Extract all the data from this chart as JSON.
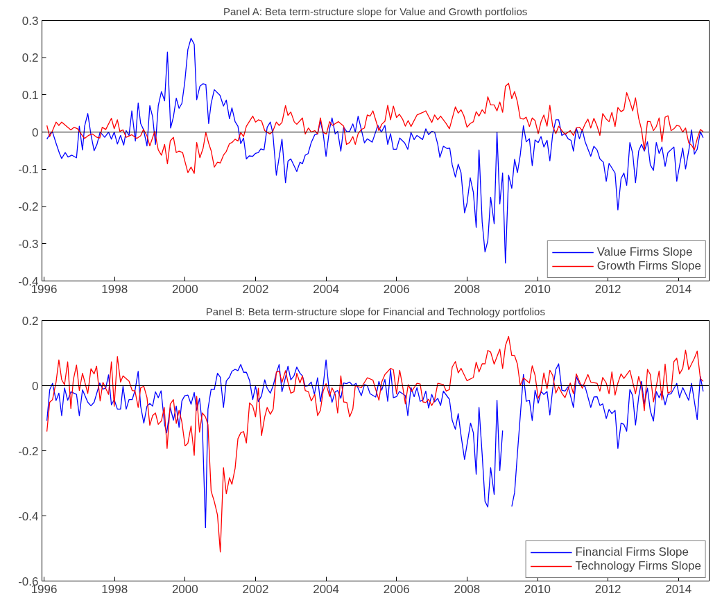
{
  "chart_data": [
    {
      "type": "line",
      "title": "Panel A: Beta term-structure slope for Value and Growth portfolios",
      "xlim": [
        1995.94,
        2014.87
      ],
      "xticks": [
        1996,
        1998,
        2000,
        2002,
        2004,
        2006,
        2008,
        2010,
        2012,
        2014
      ],
      "ylim": [
        -0.4,
        0.3
      ],
      "yticks": [
        -0.4,
        -0.3,
        -0.2,
        -0.1,
        0,
        0.1,
        0.2,
        0.3
      ],
      "grid": false,
      "legend": "bottom right",
      "ref_lines": [
        {
          "axis": "y",
          "value": 0,
          "color": "#000000"
        }
      ],
      "series": [
        {
          "name": "Value Firms Slope",
          "color": "#0000ff",
          "x": [
            1996.08,
            1996.18,
            1996.24,
            1996.34,
            1996.44,
            1996.5,
            1996.6,
            1996.68,
            1996.79,
            1996.92,
            1997.0,
            1997.09,
            1997.15,
            1997.24,
            1997.33,
            1997.42,
            1997.5,
            1997.59,
            1997.72,
            1997.83,
            1997.91,
            1997.99,
            1998.08,
            1998.17,
            1998.26,
            1998.33,
            1998.41,
            1998.49,
            1998.59,
            1998.67,
            1998.74,
            1998.82,
            1998.92,
            1999.0,
            1999.08,
            1999.16,
            1999.24,
            1999.33,
            1999.42,
            1999.5,
            1999.59,
            1999.67,
            1999.75,
            1999.83,
            1999.91,
            1999.99,
            2000.08,
            2000.17,
            2000.26,
            2000.33,
            2000.42,
            2000.51,
            2000.59,
            2000.67,
            2000.74,
            2000.83,
            2000.99,
            2001.09,
            2001.17,
            2001.26,
            2001.33,
            2001.42,
            2001.5,
            2001.58,
            2001.66,
            2001.74,
            2001.82,
            2001.92,
            2002.0,
            2002.08,
            2002.15,
            2002.24,
            2002.33,
            2002.42,
            2002.49,
            2002.59,
            2002.75,
            2002.85,
            2002.92,
            2003.0,
            2003.17,
            2003.26,
            2003.33,
            2003.41,
            2003.49,
            2003.58,
            2003.68,
            2003.76,
            2003.84,
            2003.92,
            2004.0,
            2004.1,
            2004.17,
            2004.26,
            2004.33,
            2004.42,
            2004.5,
            2004.59,
            2004.67,
            2004.76,
            2004.83,
            2004.91,
            2005.0,
            2005.09,
            2005.17,
            2005.31,
            2005.47,
            2005.57,
            2005.67,
            2005.75,
            2005.83,
            2005.91,
            2006.0,
            2006.09,
            2006.23,
            2006.32,
            2006.41,
            2006.5,
            2006.58,
            2006.74,
            2006.83,
            2006.91,
            2007.0,
            2007.08,
            2007.17,
            2007.23,
            2007.33,
            2007.43,
            2007.51,
            2007.58,
            2007.67,
            2007.75,
            2007.83,
            2007.93,
            2008.0,
            2008.09,
            2008.18,
            2008.26,
            2008.34,
            2008.43,
            2008.51,
            2008.59,
            2008.67,
            2008.77,
            2008.85,
            2008.93,
            2009.01,
            2009.09,
            2009.18,
            2009.27,
            2009.35,
            2009.43,
            2009.51,
            2009.6,
            2009.68,
            2009.77,
            2009.85,
            2009.93,
            2010.02,
            2010.1,
            2010.18,
            2010.27,
            2010.35,
            2010.43,
            2010.52,
            2010.6,
            2010.69,
            2010.78,
            2010.87,
            2010.95,
            2011.02,
            2011.1,
            2011.19,
            2011.27,
            2011.35,
            2011.51,
            2011.6,
            2011.69,
            2011.77,
            2011.87,
            2011.95,
            2012.03,
            2012.2,
            2012.28,
            2012.37,
            2012.45,
            2012.53,
            2012.62,
            2012.7,
            2012.78,
            2012.87,
            2012.95,
            2013.03,
            2013.12,
            2013.2,
            2013.29,
            2013.37,
            2013.45,
            2013.53,
            2013.62,
            2013.7,
            2013.87,
            2013.95,
            2014.12,
            2014.2,
            2014.3,
            2014.37,
            2014.45,
            2014.53,
            2014.62,
            2014.7
          ],
          "values": [
            -0.019,
            -0.003,
            0,
            -0.03,
            -0.058,
            -0.071,
            -0.055,
            -0.067,
            -0.062,
            -0.069,
            0.016,
            -0.048,
            0.016,
            0.05,
            -0.007,
            -0.05,
            -0.033,
            0,
            -0.014,
            0,
            -0.019,
            0,
            -0.032,
            -0.009,
            -0.035,
            0.004,
            -0.009,
            0.057,
            -0.024,
            0.078,
            0.023,
            0.007,
            -0.037,
            0.071,
            0.041,
            -0.033,
            0.071,
            0.109,
            0.084,
            0.215,
            0.011,
            0.041,
            0.091,
            0.064,
            0.077,
            0.133,
            0.222,
            0.252,
            0.236,
            0.087,
            0.123,
            0.13,
            0.128,
            0.023,
            0.077,
            0.114,
            0.099,
            0.07,
            0.086,
            0.036,
            0.065,
            0.028,
            0.016,
            -0.031,
            -0.016,
            -0.072,
            -0.064,
            -0.065,
            -0.057,
            -0.055,
            -0.045,
            -0.048,
            0.013,
            0.027,
            -0.003,
            -0.116,
            -0.019,
            -0.136,
            -0.078,
            -0.072,
            -0.106,
            -0.081,
            -0.085,
            -0.062,
            -0.058,
            -0.028,
            -0.007,
            -0.005,
            0.03,
            -0.005,
            -0.065,
            0.009,
            0.038,
            -0.005,
            0.002,
            -0.051,
            0.013,
            0.001,
            0.002,
            0.022,
            0,
            0.043,
            0.007,
            -0.029,
            -0.018,
            -0.027,
            0.018,
            0,
            0.018,
            -0.033,
            -0.004,
            -0.046,
            -0.046,
            -0.016,
            -0.029,
            -0.046,
            -0.001,
            -0.02,
            -0.009,
            -0.02,
            0.009,
            -0.007,
            0.002,
            0,
            -0.033,
            -0.068,
            -0.038,
            -0.044,
            -0.043,
            -0.088,
            -0.121,
            -0.086,
            -0.109,
            -0.217,
            -0.191,
            -0.123,
            -0.162,
            -0.256,
            -0.048,
            -0.242,
            -0.322,
            -0.292,
            -0.175,
            -0.246,
            0,
            -0.193,
            -0.11,
            -0.352,
            -0.116,
            -0.151,
            -0.073,
            -0.109,
            -0.062,
            0.017,
            -0.026,
            -0.018,
            -0.09,
            -0.021,
            -0.028,
            -0.012,
            -0.04,
            -0.022,
            -0.077,
            -0.006,
            0.033,
            0.033,
            -0.009,
            -0.004,
            -0.018,
            -0.022,
            -0.051,
            0.011,
            -0.018,
            0.007,
            -0.026,
            -0.065,
            -0.038,
            -0.048,
            -0.072,
            -0.081,
            -0.132,
            -0.084,
            -0.11,
            -0.209,
            -0.125,
            -0.11,
            -0.143,
            -0.028,
            -0.057,
            -0.136,
            -0.051,
            -0.033,
            -0.051,
            -0.026,
            -0.088,
            -0.103,
            -0.028,
            -0.057,
            -0.04,
            -0.092,
            -0.055,
            -0.04,
            -0.132,
            -0.043,
            -0.099,
            -0.044,
            0.006,
            -0.059,
            -0.046,
            0.001,
            -0.015
          ]
        },
        {
          "name": "Growth Firms Slope",
          "color": "#ff0000",
          "x": [
            1996.08,
            1996.16,
            1996.24,
            1996.34,
            1996.42,
            1996.5,
            1996.76,
            1996.85,
            1996.95,
            1997.08,
            1997.15,
            1997.26,
            1997.37,
            1997.5,
            1997.58,
            1997.65,
            1997.75,
            1997.91,
            1997.99,
            1998.08,
            1998.15,
            1998.24,
            1998.33,
            1998.49,
            1998.63,
            1998.74,
            1998.82,
            1998.92,
            1999.0,
            1999.14,
            1999.24,
            1999.33,
            1999.42,
            1999.5,
            1999.58,
            1999.67,
            1999.75,
            1999.83,
            1999.93,
            2000.08,
            2000.17,
            2000.26,
            2000.33,
            2000.42,
            2000.51,
            2000.59,
            2000.67,
            2000.74,
            2000.83,
            2000.92,
            2001.0,
            2001.09,
            2001.17,
            2001.26,
            2001.33,
            2001.42,
            2001.5,
            2001.58,
            2001.66,
            2001.74,
            2001.92,
            2002.0,
            2002.08,
            2002.17,
            2002.26,
            2002.41,
            2002.49,
            2002.59,
            2002.67,
            2002.75,
            2002.85,
            2002.92,
            2003.0,
            2003.1,
            2003.17,
            2003.33,
            2003.41,
            2003.5,
            2003.58,
            2003.68,
            2003.76,
            2003.84,
            2003.92,
            2004.01,
            2004.1,
            2004.18,
            2004.35,
            2004.5,
            2004.58,
            2004.67,
            2004.76,
            2004.83,
            2004.91,
            2005.0,
            2005.09,
            2005.17,
            2005.25,
            2005.33,
            2005.5,
            2005.58,
            2005.67,
            2005.75,
            2005.83,
            2005.91,
            2006.0,
            2006.08,
            2006.17,
            2006.25,
            2006.33,
            2006.41,
            2006.58,
            2006.75,
            2006.83,
            2007.0,
            2007.08,
            2007.17,
            2007.25,
            2007.41,
            2007.5,
            2007.67,
            2007.75,
            2007.83,
            2007.91,
            2008.0,
            2008.09,
            2008.18,
            2008.26,
            2008.34,
            2008.43,
            2008.51,
            2008.59,
            2008.67,
            2008.77,
            2008.85,
            2008.93,
            2009.01,
            2009.09,
            2009.18,
            2009.27,
            2009.35,
            2009.43,
            2009.51,
            2009.6,
            2009.68,
            2009.77,
            2009.85,
            2009.93,
            2010.02,
            2010.1,
            2010.18,
            2010.27,
            2010.35,
            2010.43,
            2010.52,
            2010.6,
            2010.69,
            2010.78,
            2010.93,
            2011.02,
            2011.1,
            2011.19,
            2011.27,
            2011.35,
            2011.43,
            2011.51,
            2011.6,
            2011.69,
            2011.77,
            2011.85,
            2011.95,
            2012.03,
            2012.11,
            2012.2,
            2012.28,
            2012.37,
            2012.45,
            2012.53,
            2012.62,
            2012.7,
            2012.78,
            2012.87,
            2012.95,
            2013.03,
            2013.12,
            2013.2,
            2013.29,
            2013.37,
            2013.45,
            2013.53,
            2013.62,
            2013.7,
            2013.79,
            2013.87,
            2013.95,
            2014.03,
            2014.12,
            2014.2,
            2014.29,
            2014.37,
            2014.45,
            2014.53,
            2014.62,
            2014.7
          ],
          "values": [
            0.018,
            -0.012,
            0.004,
            0.027,
            0.018,
            0.027,
            0.006,
            0.013,
            0.009,
            -0.009,
            -0.017,
            -0.009,
            -0.005,
            -0.014,
            -0.016,
            0.013,
            0.007,
            0.037,
            0.009,
            0.033,
            0.002,
            0.006,
            -0.014,
            -0.007,
            -0.017,
            -0.01,
            0.007,
            -0.01,
            -0.037,
            0.002,
            -0.048,
            -0.062,
            -0.033,
            -0.085,
            -0.024,
            -0.014,
            -0.055,
            -0.051,
            -0.055,
            -0.109,
            -0.094,
            -0.111,
            -0.028,
            -0.069,
            -0.044,
            -0.001,
            -0.03,
            -0.05,
            -0.094,
            -0.081,
            -0.083,
            -0.062,
            -0.052,
            -0.031,
            -0.028,
            -0.019,
            -0.024,
            -0.001,
            -0.012,
            0.016,
            0.043,
            0.027,
            0.033,
            0.03,
            0.004,
            -0.005,
            0.002,
            0.027,
            0.018,
            0.026,
            0.071,
            0.045,
            0.054,
            0.027,
            0.021,
            0.038,
            -0.005,
            0.011,
            0,
            0.004,
            -0.005,
            0.038,
            -0.001,
            -0.005,
            0.028,
            0.018,
            0.028,
            0.016,
            -0.033,
            -0.028,
            -0.012,
            -0.033,
            -0.004,
            0.007,
            0.011,
            0.046,
            0.043,
            0.057,
            0.004,
            0.021,
            0.029,
            0.072,
            0.033,
            0.07,
            0.039,
            0.048,
            0.035,
            0.016,
            0.031,
            0.015,
            0.046,
            0.053,
            0.057,
            0.026,
            0.046,
            0.033,
            0.043,
            0.023,
            0.009,
            0.068,
            0.051,
            0.06,
            0.044,
            0.013,
            0.023,
            0.028,
            0.055,
            0.043,
            0.06,
            0.05,
            0.095,
            0.073,
            0.073,
            0.057,
            0.081,
            0.053,
            0.123,
            0.131,
            0.09,
            0.109,
            0.081,
            0.037,
            0.035,
            0.04,
            0.015,
            0.038,
            0.031,
            -0.004,
            0.028,
            0.046,
            0.016,
            0.072,
            0.016,
            -0.004,
            0.016,
            0.004,
            -0.006,
            0.004,
            -0.009,
            0.011,
            0.013,
            0.004,
            0.022,
            0.035,
            0.011,
            0.037,
            0.016,
            -0.009,
            0.05,
            0.035,
            0.028,
            0.053,
            0.015,
            0.066,
            0.055,
            0.06,
            0.106,
            0.082,
            0.057,
            0.092,
            0.037,
            0.007,
            -0.048,
            0.029,
            0.028,
            0.004,
            0.015,
            0.038,
            -0.026,
            0.04,
            0.044,
            0.004,
            0.009,
            0.018,
            0.016,
            0,
            0.011,
            -0.029,
            -0.035,
            -0.048,
            -0.018,
            0.007,
            0.001
          ]
        }
      ]
    },
    {
      "type": "line",
      "title": "Panel B: Beta term-structure slope for Financial and Technology portfolios",
      "xlim": [
        1995.94,
        2014.87
      ],
      "xticks": [
        1996,
        1998,
        2000,
        2002,
        2004,
        2006,
        2008,
        2010,
        2012,
        2014
      ],
      "ylim": [
        -0.6,
        0.2
      ],
      "yticks": [
        -0.6,
        -0.4,
        -0.2,
        0,
        0.2
      ],
      "grid": false,
      "legend": "bottom right",
      "ref_lines": [
        {
          "axis": "y",
          "value": 0,
          "color": "#000000"
        }
      ],
      "series": [
        {
          "name": "Financial Firms Slope",
          "color": "#0000ff",
          "x": [
            1996.08,
            1996.16,
            1996.24,
            1996.34,
            1996.42,
            1996.5,
            1996.58,
            1996.67,
            1996.76,
            1996.92,
            1997.0,
            1997.09,
            1997.24,
            1997.33,
            1997.42,
            1997.58,
            1997.67,
            1997.75,
            1997.83,
            1997.91,
            1997.99,
            1998.08,
            1998.17,
            1998.24,
            1998.33,
            1998.41,
            1998.5,
            1998.58,
            1998.67,
            1998.74,
            1998.83,
            1998.92,
            1999.0,
            1999.08,
            1999.16,
            1999.24,
            1999.32,
            1999.42,
            1999.48,
            1999.58,
            1999.67,
            1999.75,
            1999.83,
            1999.91,
            1999.99,
            2000.08,
            2000.17,
            2000.26,
            2000.33,
            2000.41,
            2000.49,
            2000.58,
            2000.65,
            2000.74,
            2000.83,
            2000.92,
            2001.0,
            2001.09,
            2001.17,
            2001.26,
            2001.33,
            2001.42,
            2001.5,
            2001.58,
            2001.66,
            2001.74,
            2001.83,
            2001.92,
            2002.0,
            2002.08,
            2002.17,
            2002.26,
            2002.33,
            2002.42,
            2002.5,
            2002.59,
            2002.67,
            2002.75,
            2002.85,
            2002.92,
            2003.0,
            2003.09,
            2003.17,
            2003.26,
            2003.33,
            2003.41,
            2003.49,
            2003.58,
            2003.67,
            2003.76,
            2003.84,
            2003.92,
            2004.0,
            2004.08,
            2004.17,
            2004.26,
            2004.33,
            2004.42,
            2004.5,
            2004.58,
            2004.67,
            2004.76,
            2004.85,
            2005.0,
            2005.09,
            2005.17,
            2005.25,
            2005.41,
            2005.5,
            2005.58,
            2005.67,
            2005.75,
            2005.83,
            2005.91,
            2006.0,
            2006.08,
            2006.25,
            2006.32,
            2006.41,
            2006.5,
            2006.58,
            2006.67,
            2006.75,
            2006.83,
            2006.91,
            2007.0,
            2007.08,
            2007.17,
            2007.25,
            2007.33,
            2007.5,
            2007.58,
            2007.67,
            2007.75,
            2007.83,
            2007.93,
            2008.01,
            2008.1,
            2008.18,
            2008.26,
            2008.34,
            2008.43,
            2008.51,
            2008.59,
            2008.67,
            2008.77,
            2008.85,
            2008.93,
            2009.01,
            2009.09,
            2009.18,
            2009.27,
            2009.35,
            2009.43,
            2009.51,
            2009.6,
            2009.68,
            2009.77,
            2009.85,
            2009.93,
            2010.02,
            2010.1,
            2010.18,
            2010.27,
            2010.35,
            2010.43,
            2010.52,
            2010.6,
            2010.69,
            2010.78,
            2010.87,
            2011.02,
            2011.1,
            2011.19,
            2011.35,
            2011.51,
            2011.6,
            2011.69,
            2011.77,
            2011.85,
            2011.95,
            2012.03,
            2012.11,
            2012.2,
            2012.28,
            2012.37,
            2012.45,
            2012.53,
            2012.62,
            2012.7,
            2012.78,
            2012.87,
            2012.95,
            2013.03,
            2013.12,
            2013.2,
            2013.29,
            2013.37,
            2013.45,
            2013.53,
            2013.62,
            2013.7,
            2013.79,
            2013.95,
            2014.03,
            2014.12,
            2014.29,
            2014.37,
            2014.53,
            2014.62,
            2014.7
          ],
          "values": [
            -0.108,
            -0.013,
            0.007,
            -0.046,
            -0.023,
            -0.092,
            -0.007,
            -0.045,
            -0.019,
            -0.027,
            -0.092,
            -0.013,
            -0.051,
            -0.062,
            -0.051,
            0.008,
            -0.011,
            -0.007,
            0.033,
            -0.059,
            -0.043,
            -0.072,
            -0.072,
            -0.002,
            -0.072,
            -0.043,
            -0.043,
            -0.015,
            0.044,
            -0.063,
            -0.115,
            -0.063,
            -0.055,
            -0.063,
            -0.019,
            -0.037,
            -0.016,
            -0.12,
            -0.145,
            -0.067,
            -0.106,
            -0.063,
            -0.128,
            -0.047,
            -0.031,
            -0.029,
            -0.057,
            -0.021,
            -0.076,
            -0.039,
            -0.12,
            -0.436,
            -0.072,
            -0.011,
            -0.012,
            0.038,
            0.026,
            -0.067,
            0.014,
            0.026,
            0.044,
            0.05,
            0.046,
            0.065,
            0.041,
            0.041,
            0.016,
            -0.043,
            -0.002,
            -0.049,
            -0.031,
            0.018,
            -0.008,
            -0.023,
            0,
            0.038,
            0.065,
            -0.019,
            0.026,
            0.06,
            0.018,
            0.03,
            0.057,
            0.038,
            0.03,
            -0.002,
            0,
            0.011,
            -0.027,
            0.024,
            -0.049,
            0.002,
            0.079,
            -0.007,
            -0.051,
            -0.019,
            -0.015,
            -0.039,
            0.008,
            0.006,
            0.011,
            0,
            0.007,
            -0.031,
            0.003,
            0,
            -0.025,
            -0.035,
            0.013,
            -0.014,
            0.019,
            -0.048,
            0.049,
            -0.037,
            -0.034,
            -0.018,
            -0.031,
            -0.092,
            -0.006,
            -0.034,
            -0.006,
            -0.048,
            -0.044,
            -0.017,
            -0.069,
            -0.027,
            -0.05,
            -0.039,
            -0.061,
            -0.017,
            -0.042,
            -0.107,
            -0.134,
            -0.086,
            -0.153,
            -0.227,
            -0.174,
            -0.115,
            -0.145,
            -0.272,
            -0.067,
            -0.212,
            -0.355,
            -0.373,
            -0.252,
            -0.334,
            -0.045,
            -0.261,
            -0.138,
            null,
            null,
            -0.371,
            -0.328,
            -0.208,
            -0.094,
            0.034,
            -0.048,
            -0.045,
            -0.107,
            -0.014,
            -0.054,
            -0.018,
            -0.027,
            -0.018,
            -0.09,
            -0.01,
            0.05,
            0.067,
            -0.014,
            -0.017,
            -0.003,
            -0.067,
            0.028,
            0.005,
            -0.003,
            -0.067,
            -0.035,
            -0.034,
            -0.061,
            -0.056,
            -0.101,
            -0.073,
            -0.086,
            -0.076,
            -0.193,
            -0.115,
            -0.119,
            -0.14,
            -0.012,
            -0.031,
            -0.121,
            -0.035,
            0.013,
            -0.056,
            -0.008,
            -0.077,
            -0.109,
            -0.018,
            -0.037,
            -0.018,
            -0.059,
            -0.027,
            -0.025,
            0.007,
            -0.037,
            -0.006,
            -0.045,
            0.007,
            -0.104,
            0.028,
            -0.018
          ]
        },
        {
          "name": "Technology Firms Slope",
          "color": "#ff0000",
          "x": [
            1996.08,
            1996.16,
            1996.24,
            1996.34,
            1996.42,
            1996.5,
            1996.58,
            1996.67,
            1996.76,
            1996.83,
            1996.92,
            1997.0,
            1997.09,
            1997.24,
            1997.33,
            1997.42,
            1997.49,
            1997.59,
            1997.67,
            1997.83,
            1997.91,
            1997.99,
            1998.08,
            1998.17,
            1998.24,
            1998.41,
            1998.5,
            1998.58,
            1998.67,
            1998.74,
            1998.83,
            1998.92,
            1999.0,
            1999.08,
            1999.16,
            1999.24,
            1999.33,
            1999.41,
            1999.49,
            1999.58,
            1999.67,
            1999.75,
            1999.83,
            1999.91,
            2000.0,
            2000.08,
            2000.17,
            2000.26,
            2000.33,
            2000.41,
            2000.49,
            2000.58,
            2000.65,
            2000.74,
            2000.83,
            2000.92,
            2001.0,
            2001.09,
            2001.17,
            2001.26,
            2001.33,
            2001.42,
            2001.5,
            2001.58,
            2001.66,
            2001.74,
            2001.83,
            2001.92,
            2002.0,
            2002.08,
            2002.17,
            2002.26,
            2002.33,
            2002.42,
            2002.5,
            2002.59,
            2002.67,
            2002.75,
            2002.85,
            2002.92,
            2003.0,
            2003.09,
            2003.17,
            2003.26,
            2003.33,
            2003.41,
            2003.5,
            2003.58,
            2003.68,
            2003.76,
            2003.84,
            2003.92,
            2004.0,
            2004.1,
            2004.17,
            2004.26,
            2004.33,
            2004.42,
            2004.5,
            2004.59,
            2004.67,
            2004.76,
            2004.83,
            2005.0,
            2005.17,
            2005.33,
            2005.5,
            2005.58,
            2005.67,
            2005.83,
            2005.91,
            2006.0,
            2006.09,
            2006.17,
            2006.25,
            2006.33,
            2006.43,
            2006.58,
            2006.67,
            2006.75,
            2006.83,
            2006.91,
            2007.0,
            2007.08,
            2007.17,
            2007.33,
            2007.41,
            2007.5,
            2007.58,
            2007.67,
            2007.75,
            2007.83,
            2008.0,
            2008.18,
            2008.26,
            2008.34,
            2008.43,
            2008.51,
            2008.59,
            2008.67,
            2008.77,
            2008.93,
            2009.01,
            2009.09,
            2009.18,
            2009.27,
            2009.35,
            2009.43,
            2009.51,
            2009.6,
            2009.77,
            2009.85,
            2009.93,
            2010.02,
            2010.1,
            2010.18,
            2010.27,
            2010.35,
            2010.43,
            2010.52,
            2010.6,
            2010.69,
            2010.78,
            2010.93,
            2011.02,
            2011.1,
            2011.27,
            2011.43,
            2011.51,
            2011.69,
            2011.77,
            2011.85,
            2011.95,
            2012.03,
            2012.11,
            2012.2,
            2012.28,
            2012.37,
            2012.45,
            2012.62,
            2012.78,
            2012.87,
            2012.95,
            2013.03,
            2013.12,
            2013.2,
            2013.29,
            2013.37,
            2013.45,
            2013.53,
            2013.62,
            2013.7,
            2013.79,
            2013.87,
            2013.95,
            2014.03,
            2014.12,
            2014.2,
            2014.29,
            2014.45,
            2014.53,
            2014.62,
            2014.7
          ],
          "values": [
            -0.141,
            -0.051,
            -0.043,
            0.011,
            0.079,
            0.018,
            0.003,
            0.073,
            -0.07,
            0.018,
            0.063,
            -0.015,
            0.038,
            -0.024,
            0.052,
            0.036,
            0.06,
            -0.047,
            0.01,
            -0.027,
            0.073,
            -0.063,
            0.089,
            0.011,
            0.03,
            0.014,
            -0.015,
            -0.016,
            -0.067,
            -0.007,
            -0.002,
            -0.037,
            -0.122,
            -0.092,
            -0.084,
            -0.119,
            -0.108,
            -0.067,
            -0.193,
            -0.057,
            -0.043,
            -0.116,
            -0.076,
            -0.112,
            -0.185,
            -0.177,
            -0.124,
            -0.214,
            -0.033,
            -0.143,
            -0.084,
            -0.096,
            -0.12,
            -0.324,
            -0.356,
            -0.397,
            -0.511,
            -0.252,
            -0.332,
            -0.283,
            -0.303,
            -0.254,
            -0.163,
            -0.145,
            -0.141,
            -0.176,
            -0.053,
            -0.063,
            -0.096,
            -0.008,
            -0.153,
            -0.096,
            -0.067,
            -0.088,
            -0.072,
            0.042,
            0.044,
            0.01,
            0.046,
            0.01,
            -0.023,
            -0.019,
            0.038,
            0.008,
            0.03,
            -0.015,
            -0.019,
            -0.047,
            -0.027,
            -0.092,
            -0.076,
            -0.016,
            0.006,
            -0.033,
            -0.007,
            -0.027,
            -0.084,
            0.03,
            -0.05,
            -0.052,
            -0.096,
            -0.072,
            0,
            -0.006,
            0.024,
            0.017,
            -0.045,
            0.011,
            0.034,
            0.053,
            0.049,
            -0.025,
            0.047,
            0,
            -0.056,
            0.003,
            -0.018,
            0.007,
            0.005,
            -0.05,
            -0.052,
            -0.042,
            -0.061,
            -0.044,
            0.007,
            0.003,
            -0.017,
            -0.012,
            0.057,
            0.074,
            0.039,
            0.053,
            0.015,
            0.025,
            0.072,
            0.042,
            0.067,
            0.067,
            0.108,
            0.103,
            0.066,
            0.112,
            0.053,
            0.123,
            0.151,
            0.092,
            0.092,
            0.066,
            0,
            0.024,
            0.008,
            0.061,
            0.032,
            -0.039,
            -0.018,
            0.039,
            -0.01,
            0.047,
            0.032,
            -0.023,
            -0.003,
            -0.023,
            -0.037,
            0.008,
            -0.025,
            0.036,
            -0.008,
            0.034,
            0.011,
            0.007,
            -0.017,
            0.025,
            0.008,
            -0.025,
            0.042,
            -0.029,
            0.008,
            0.036,
            0.022,
            0.047,
            -0.025,
            0.028,
            -0.002,
            -0.077,
            0.05,
            0.034,
            -0.05,
            -0.002,
            0.045,
            -0.044,
            0.066,
            -0.023,
            -0.018,
            0.074,
            0.084,
            0.036,
            0.053,
            0.109,
            0.049,
            0.084,
            0.106,
            0.022,
            0.013
          ]
        }
      ]
    }
  ]
}
